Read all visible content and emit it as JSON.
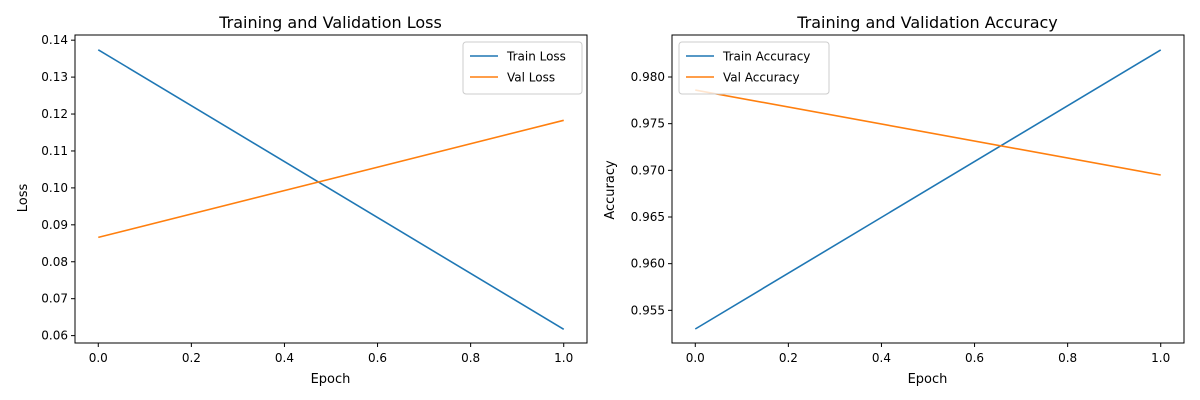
{
  "chart_data": [
    {
      "type": "line",
      "title": "Training and Validation Loss",
      "xlabel": "Epoch",
      "ylabel": "Loss",
      "xlim": [
        -0.05,
        1.05
      ],
      "ylim": [
        0.058,
        0.1414
      ],
      "xticks": [
        0.0,
        0.2,
        0.4,
        0.6,
        0.8,
        1.0
      ],
      "xtick_labels": [
        "0.0",
        "0.2",
        "0.4",
        "0.6",
        "0.8",
        "1.0"
      ],
      "yticks": [
        0.06,
        0.07,
        0.08,
        0.09,
        0.1,
        0.11,
        0.12,
        0.13,
        0.14
      ],
      "ytick_labels": [
        "0.06",
        "0.07",
        "0.08",
        "0.09",
        "0.10",
        "0.11",
        "0.12",
        "0.13",
        "0.14"
      ],
      "grid": false,
      "legend_position": "top-right",
      "x": [
        0,
        1
      ],
      "series": [
        {
          "name": "Train Loss",
          "color": "#1f77b4",
          "values": [
            0.1374,
            0.0617
          ]
        },
        {
          "name": "Val Loss",
          "color": "#ff7f0e",
          "values": [
            0.0866,
            0.1183
          ]
        }
      ]
    },
    {
      "type": "line",
      "title": "Training and Validation Accuracy",
      "xlabel": "Epoch",
      "ylabel": "Accuracy",
      "xlim": [
        -0.05,
        1.05
      ],
      "ylim": [
        0.9515,
        0.9845
      ],
      "xticks": [
        0.0,
        0.2,
        0.4,
        0.6,
        0.8,
        1.0
      ],
      "xtick_labels": [
        "0.0",
        "0.2",
        "0.4",
        "0.6",
        "0.8",
        "1.0"
      ],
      "yticks": [
        0.955,
        0.96,
        0.965,
        0.97,
        0.975,
        0.98
      ],
      "ytick_labels": [
        "0.955",
        "0.960",
        "0.965",
        "0.970",
        "0.975",
        "0.980"
      ],
      "grid": false,
      "legend_position": "top-left",
      "x": [
        0,
        1
      ],
      "series": [
        {
          "name": "Train Accuracy",
          "color": "#1f77b4",
          "values": [
            0.953,
            0.9829
          ]
        },
        {
          "name": "Val Accuracy",
          "color": "#ff7f0e",
          "values": [
            0.9786,
            0.9695
          ]
        }
      ]
    }
  ]
}
